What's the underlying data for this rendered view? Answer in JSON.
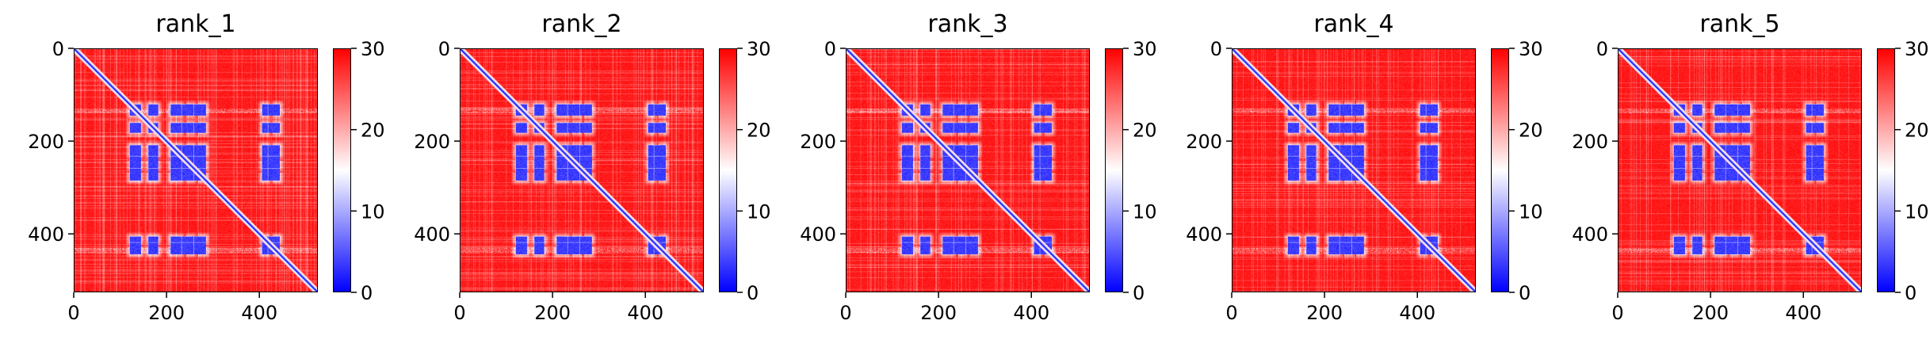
{
  "chart_data": [
    {
      "type": "heatmap",
      "title": "rank_1",
      "x_ticks": [
        0,
        200,
        400
      ],
      "y_ticks": [
        0,
        200,
        400
      ],
      "xlim": [
        0,
        526
      ],
      "ylim": [
        526,
        0
      ],
      "colorbar": {
        "ticks": [
          0,
          10,
          20,
          30
        ],
        "range": [
          0,
          30
        ],
        "colormap": "bwr"
      }
    },
    {
      "type": "heatmap",
      "title": "rank_2",
      "x_ticks": [
        0,
        200,
        400
      ],
      "y_ticks": [
        0,
        200,
        400
      ],
      "xlim": [
        0,
        526
      ],
      "ylim": [
        526,
        0
      ],
      "colorbar": {
        "ticks": [
          0,
          10,
          20,
          30
        ],
        "range": [
          0,
          30
        ],
        "colormap": "bwr"
      }
    },
    {
      "type": "heatmap",
      "title": "rank_3",
      "x_ticks": [
        0,
        200,
        400
      ],
      "y_ticks": [
        0,
        200,
        400
      ],
      "xlim": [
        0,
        526
      ],
      "ylim": [
        526,
        0
      ],
      "colorbar": {
        "ticks": [
          0,
          10,
          20,
          30
        ],
        "range": [
          0,
          30
        ],
        "colormap": "bwr"
      }
    },
    {
      "type": "heatmap",
      "title": "rank_4",
      "x_ticks": [
        0,
        200,
        400
      ],
      "y_ticks": [
        0,
        200,
        400
      ],
      "xlim": [
        0,
        526
      ],
      "ylim": [
        526,
        0
      ],
      "colorbar": {
        "ticks": [
          0,
          10,
          20,
          30
        ],
        "range": [
          0,
          30
        ],
        "colormap": "bwr"
      }
    },
    {
      "type": "heatmap",
      "title": "rank_5",
      "x_ticks": [
        0,
        200,
        400
      ],
      "y_ticks": [
        0,
        200,
        400
      ],
      "xlim": [
        0,
        526
      ],
      "ylim": [
        526,
        0
      ],
      "colorbar": {
        "ticks": [
          0,
          10,
          20,
          30
        ],
        "range": [
          0,
          30
        ],
        "colormap": "bwr"
      }
    }
  ],
  "colors": {
    "low": "#0000ff",
    "mid": "#ffffff",
    "high": "#ff0000"
  }
}
